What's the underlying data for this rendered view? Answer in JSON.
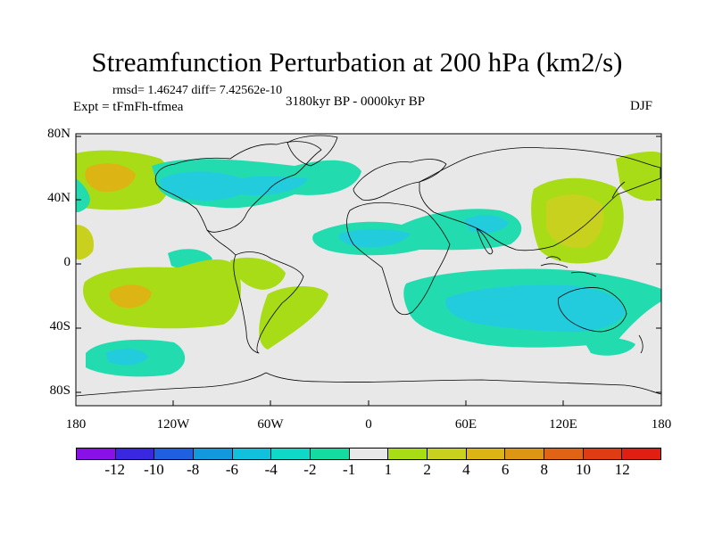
{
  "title": "Streamfunction Perturbation at 200 hPa (km2/s)",
  "stats": "rmsd= 1.46247 diff= 7.42562e-10",
  "experiment": "Expt = tFmFh-tfmea",
  "period": "3180kyr BP - 0000kyr BP",
  "season": "DJF",
  "y_axis_labels": [
    "80N",
    "40N",
    "0",
    "40S",
    "80S"
  ],
  "x_axis_labels": [
    "180",
    "120W",
    "60W",
    "0",
    "60E",
    "120E",
    "180"
  ],
  "colorbar": {
    "labels": [
      "-12",
      "-10",
      "-8",
      "-6",
      "-4",
      "-2",
      "-1",
      "1",
      "2",
      "4",
      "6",
      "8",
      "10",
      "12"
    ],
    "colors": [
      "#8a10e8",
      "#3a28e0",
      "#1e60e0",
      "#1298dc",
      "#10c0dc",
      "#10d8c8",
      "#14dca0",
      "#e8e8e8",
      "#a8dc14",
      "#c8d21e",
      "#dcb414",
      "#dc9614",
      "#e06414",
      "#e03c14",
      "#e01e12"
    ]
  },
  "palette": {
    "neutral": "#e8e8e8",
    "cyan": "#22ccdc",
    "teal": "#22dcb0",
    "green": "#a8dc16",
    "olive": "#c8d21e",
    "orange": "#dcb414"
  }
}
